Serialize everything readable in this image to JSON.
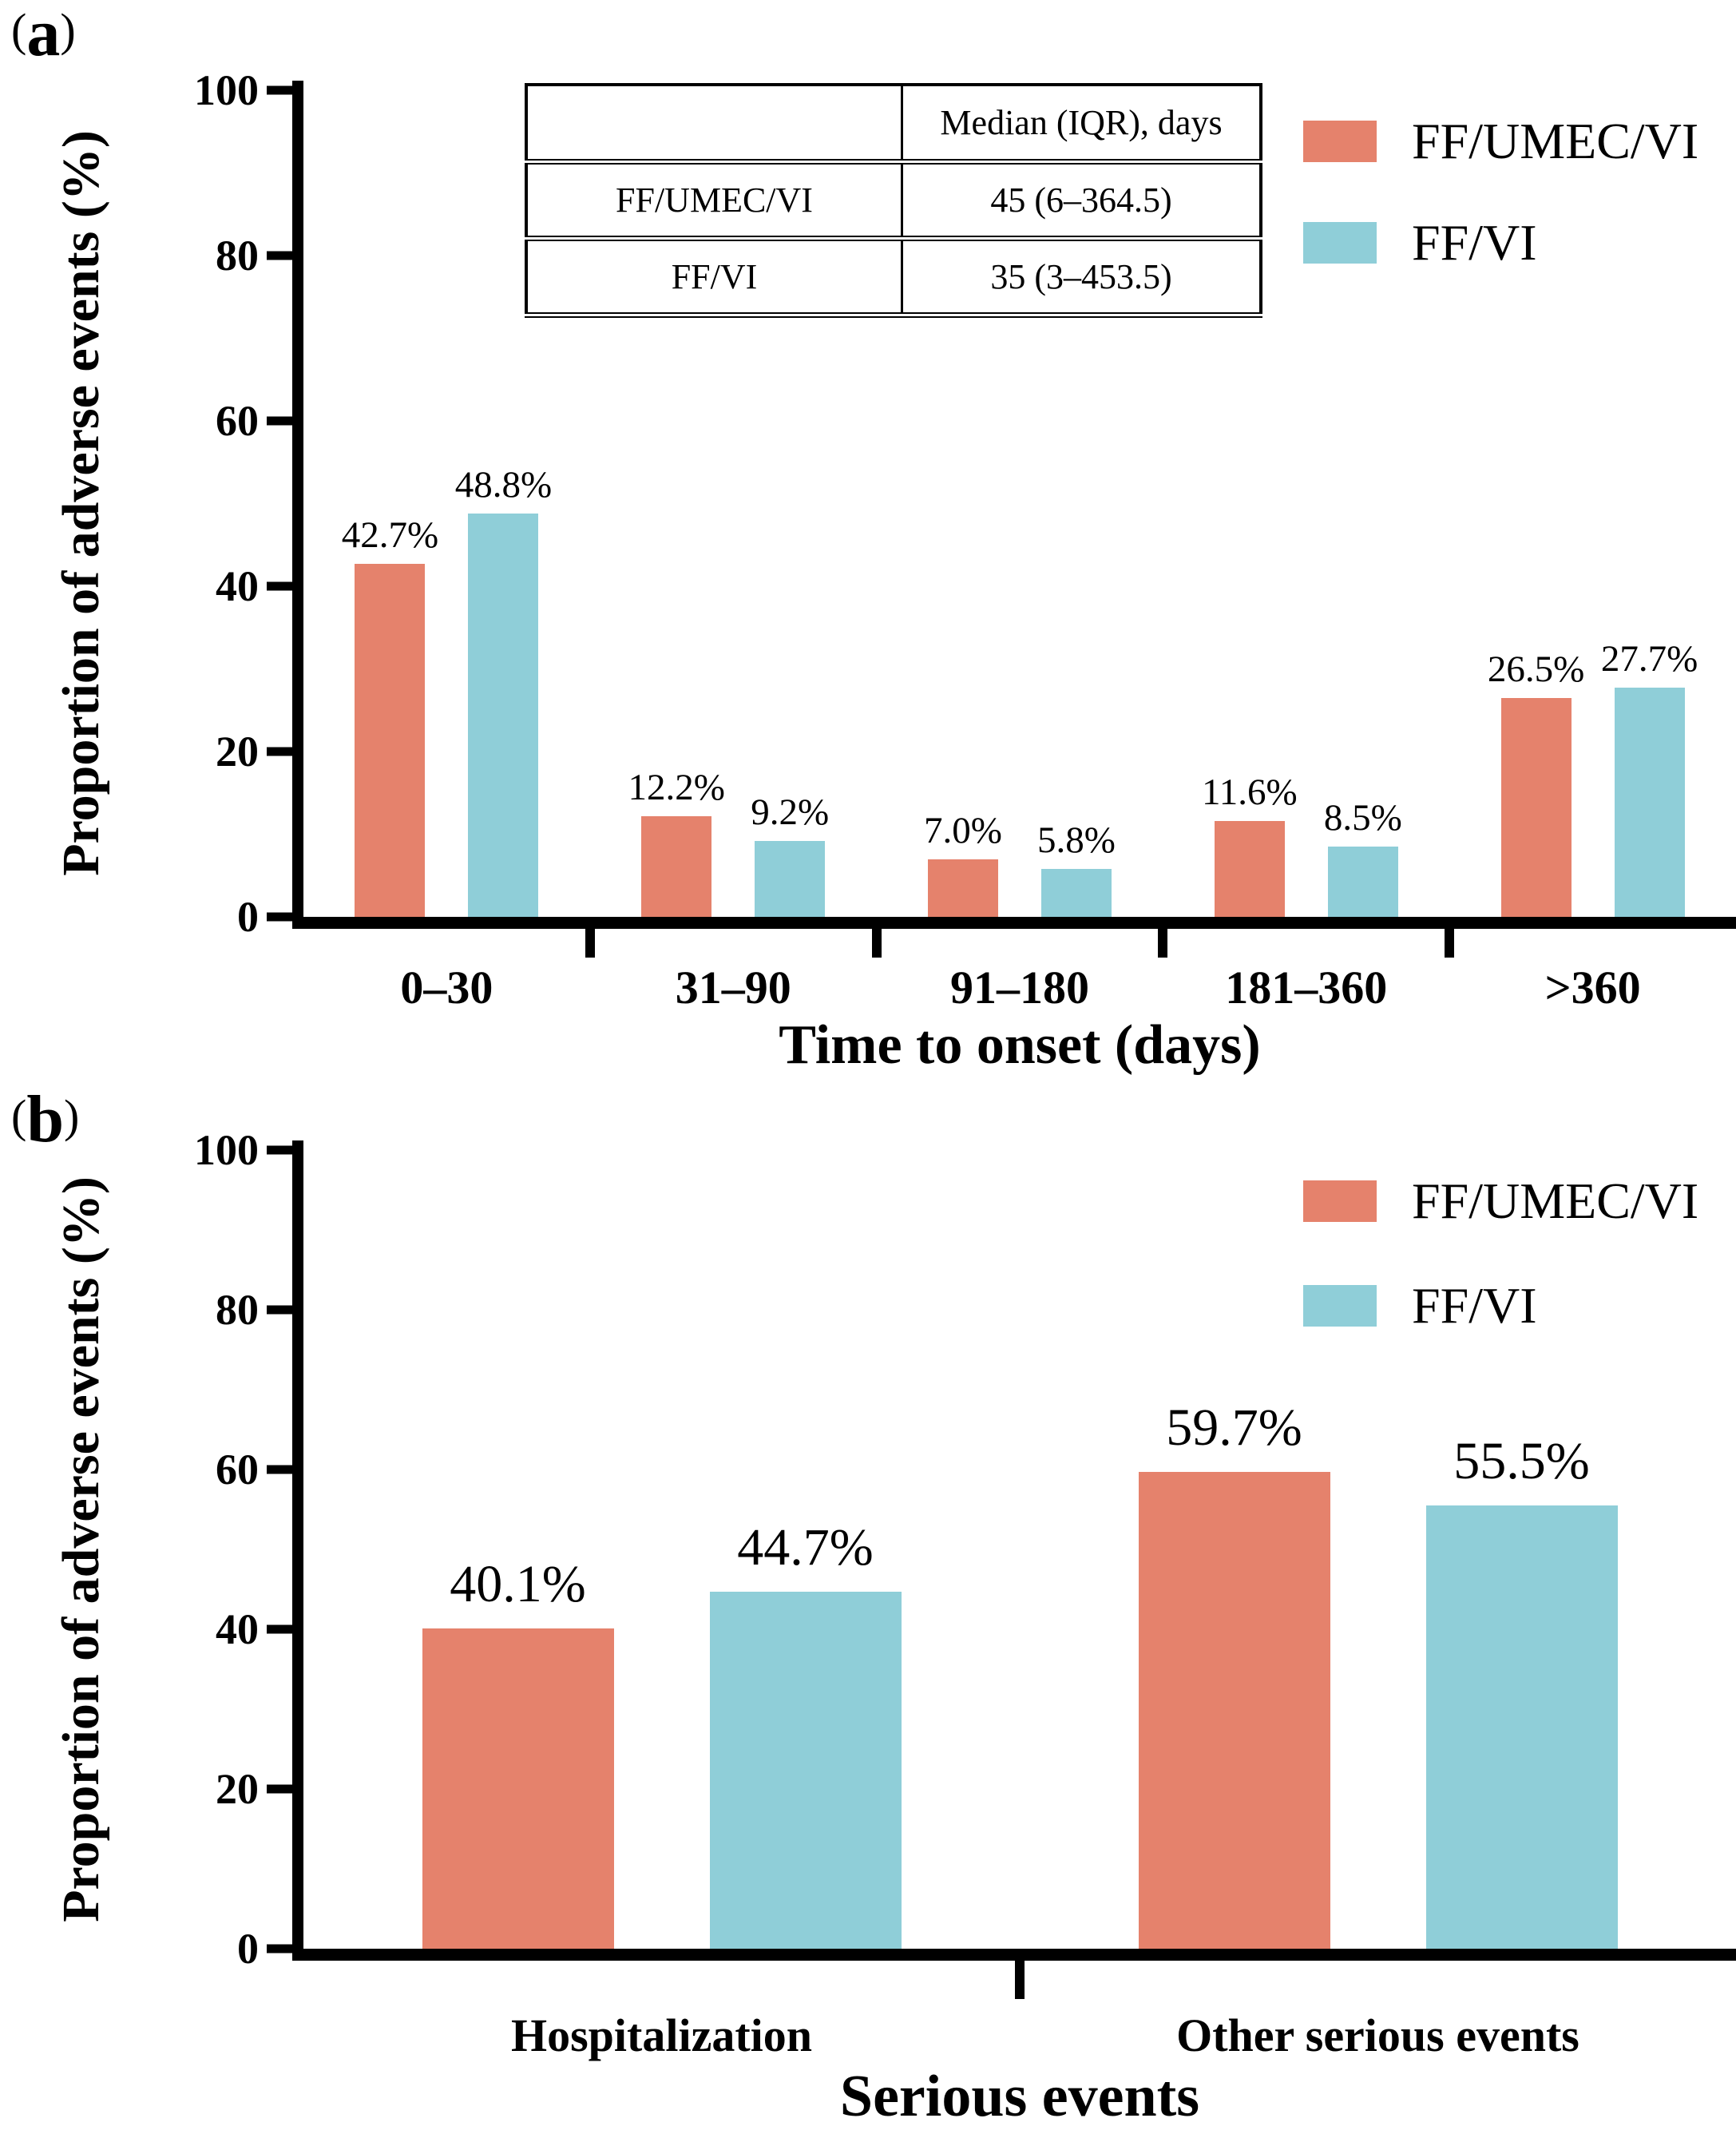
{
  "panels": {
    "a": {
      "open": "(",
      "letter": "a",
      "close": ")"
    },
    "b": {
      "open": "(",
      "letter": "b",
      "close": ")"
    }
  },
  "inset_table": {
    "header": "Median (IQR), days",
    "rows": [
      {
        "name": "FF/UMEC/VI",
        "value": "45 (6–364.5)"
      },
      {
        "name": "FF/VI",
        "value": "35 (3–453.5)"
      }
    ]
  },
  "chart_data": [
    {
      "type": "bar",
      "title": "",
      "xlabel": "Time to onset (days)",
      "ylabel": "Proportion of adverse events (%)",
      "ylim": [
        0,
        100
      ],
      "yticks": [
        0,
        20,
        40,
        60,
        80,
        100
      ],
      "grid": false,
      "legend_position": "top-right",
      "categories": [
        "0–30",
        "31–90",
        "91–180",
        "181–360",
        ">360"
      ],
      "series": [
        {
          "name": "FF/UMEC/VI",
          "color": "#E5826C",
          "values": [
            42.7,
            12.2,
            7.0,
            11.6,
            26.5
          ],
          "labels": [
            "42.7%",
            "12.2%",
            "7.0%",
            "11.6%",
            "26.5%"
          ]
        },
        {
          "name": "FF/VI",
          "color": "#8FCED8",
          "values": [
            48.8,
            9.2,
            5.8,
            8.5,
            27.7
          ],
          "labels": [
            "48.8%",
            "9.2%",
            "5.8%",
            "8.5%",
            "27.7%"
          ]
        }
      ]
    },
    {
      "type": "bar",
      "title": "",
      "xlabel": "Serious events",
      "ylabel": "Proportion of adverse events (%)",
      "ylim": [
        0,
        100
      ],
      "yticks": [
        0,
        20,
        40,
        60,
        80,
        100
      ],
      "grid": false,
      "legend_position": "top-right",
      "categories": [
        "Hospitalization",
        "Other serious events"
      ],
      "series": [
        {
          "name": "FF/UMEC/VI",
          "color": "#E5826C",
          "values": [
            40.1,
            59.7
          ],
          "labels": [
            "40.1%",
            "59.7%"
          ]
        },
        {
          "name": "FF/VI",
          "color": "#8FCED8",
          "values": [
            44.7,
            55.5
          ],
          "labels": [
            "44.7%",
            "55.5%"
          ]
        }
      ]
    }
  ]
}
